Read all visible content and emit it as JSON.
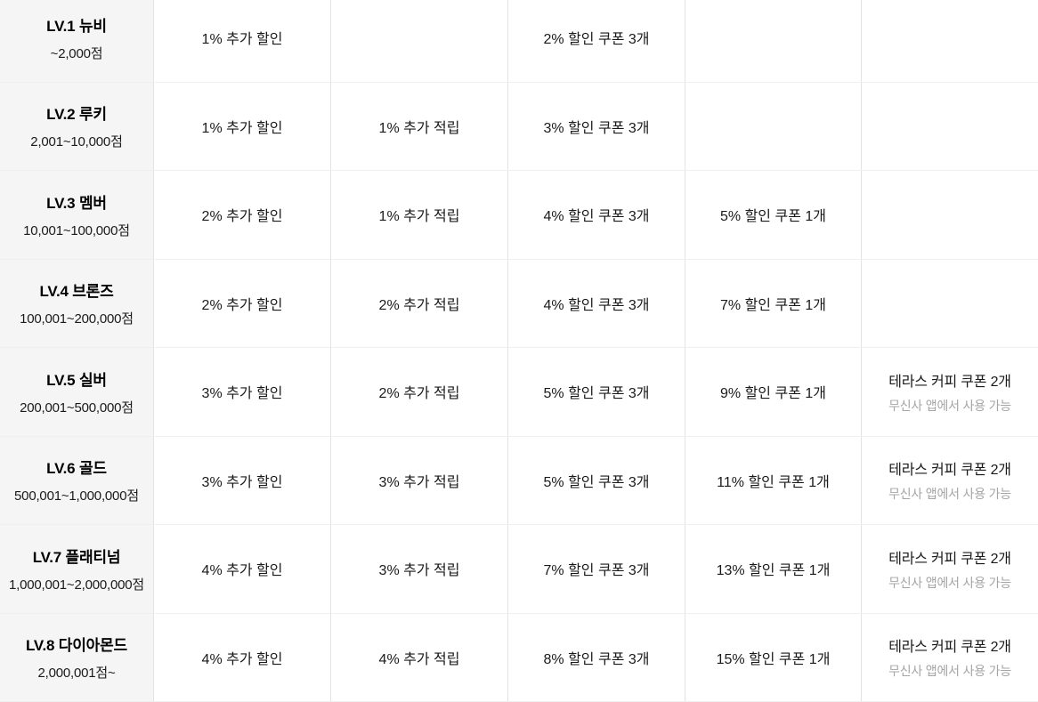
{
  "colors": {
    "level_cell_bg": "#f5f5f5",
    "cell_border_vertical": "#e3e3e3",
    "row_border_horizontal": "#efefef",
    "text_primary": "#1a1a1a",
    "text_title": "#000000",
    "text_note": "#a5a5a5",
    "page_bg": "#ffffff"
  },
  "membership_table": {
    "rows": [
      {
        "level": "LV.1 뉴비",
        "points_range": "~2,000점",
        "extra_discount": "1% 추가 할인",
        "extra_reward": "",
        "multi_coupon": "2% 할인 쿠폰 3개",
        "single_coupon": "",
        "coffee_coupon": "",
        "coffee_coupon_note": ""
      },
      {
        "level": "LV.2 루키",
        "points_range": "2,001~10,000점",
        "extra_discount": "1% 추가 할인",
        "extra_reward": "1% 추가 적립",
        "multi_coupon": "3% 할인 쿠폰 3개",
        "single_coupon": "",
        "coffee_coupon": "",
        "coffee_coupon_note": ""
      },
      {
        "level": "LV.3 멤버",
        "points_range": "10,001~100,000점",
        "extra_discount": "2% 추가 할인",
        "extra_reward": "1% 추가 적립",
        "multi_coupon": "4% 할인 쿠폰 3개",
        "single_coupon": "5% 할인 쿠폰 1개",
        "coffee_coupon": "",
        "coffee_coupon_note": ""
      },
      {
        "level": "LV.4 브론즈",
        "points_range": "100,001~200,000점",
        "extra_discount": "2% 추가 할인",
        "extra_reward": "2% 추가 적립",
        "multi_coupon": "4% 할인 쿠폰 3개",
        "single_coupon": "7% 할인 쿠폰 1개",
        "coffee_coupon": "",
        "coffee_coupon_note": ""
      },
      {
        "level": "LV.5 실버",
        "points_range": "200,001~500,000점",
        "extra_discount": "3% 추가 할인",
        "extra_reward": "2% 추가 적립",
        "multi_coupon": "5% 할인 쿠폰 3개",
        "single_coupon": "9% 할인 쿠폰 1개",
        "coffee_coupon": "테라스 커피 쿠폰 2개",
        "coffee_coupon_note": "무신사 앱에서 사용 가능"
      },
      {
        "level": "LV.6 골드",
        "points_range": "500,001~1,000,000점",
        "extra_discount": "3% 추가 할인",
        "extra_reward": "3% 추가 적립",
        "multi_coupon": "5% 할인 쿠폰 3개",
        "single_coupon": "11% 할인 쿠폰 1개",
        "coffee_coupon": "테라스 커피 쿠폰 2개",
        "coffee_coupon_note": "무신사 앱에서 사용 가능"
      },
      {
        "level": "LV.7 플래티넘",
        "points_range": "1,000,001~2,000,000점",
        "extra_discount": "4% 추가 할인",
        "extra_reward": "3% 추가 적립",
        "multi_coupon": "7% 할인 쿠폰 3개",
        "single_coupon": "13% 할인 쿠폰 1개",
        "coffee_coupon": "테라스 커피 쿠폰 2개",
        "coffee_coupon_note": "무신사 앱에서 사용 가능"
      },
      {
        "level": "LV.8 다이아몬드",
        "points_range": "2,000,001점~",
        "extra_discount": "4% 추가 할인",
        "extra_reward": "4% 추가 적립",
        "multi_coupon": "8% 할인 쿠폰 3개",
        "single_coupon": "15% 할인 쿠폰 1개",
        "coffee_coupon": "테라스 커피 쿠폰 2개",
        "coffee_coupon_note": "무신사 앱에서 사용 가능"
      }
    ]
  }
}
